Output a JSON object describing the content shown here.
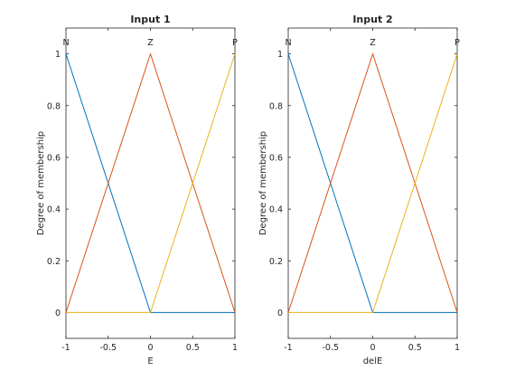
{
  "chart_data": [
    {
      "type": "line",
      "title": "Input 1",
      "xlabel": "E",
      "ylabel": "Degree of membership",
      "xlim": [
        -1,
        1
      ],
      "ylim": [
        -0.1,
        1.1
      ],
      "xticks": [
        -1,
        -0.5,
        0,
        0.5,
        1
      ],
      "xtick_labels": [
        "-1",
        "-0.5",
        "0",
        "0.5",
        "1"
      ],
      "yticks": [
        0,
        0.2,
        0.4,
        0.6,
        0.8,
        1
      ],
      "ytick_labels": [
        "0",
        "0.2",
        "0.4",
        "0.6",
        "0.8",
        "1"
      ],
      "grid": false,
      "series": [
        {
          "name": "N",
          "color": "#0072BD",
          "x": [
            -1,
            0,
            1
          ],
          "y": [
            1,
            0,
            0
          ]
        },
        {
          "name": "Z",
          "color": "#D95319",
          "x": [
            -1,
            0,
            1
          ],
          "y": [
            0,
            1,
            0
          ]
        },
        {
          "name": "P",
          "color": "#EDB120",
          "x": [
            -1,
            0,
            1
          ],
          "y": [
            0,
            0,
            1
          ]
        }
      ]
    },
    {
      "type": "line",
      "title": "Input 2",
      "xlabel": "delE",
      "ylabel": "Degree of membership",
      "xlim": [
        -1,
        1
      ],
      "ylim": [
        -0.1,
        1.1
      ],
      "xticks": [
        -1,
        -0.5,
        0,
        0.5,
        1
      ],
      "xtick_labels": [
        "-1",
        "-0.5",
        "0",
        "0.5",
        "1"
      ],
      "yticks": [
        0,
        0.2,
        0.4,
        0.6,
        0.8,
        1
      ],
      "ytick_labels": [
        "0",
        "0.2",
        "0.4",
        "0.6",
        "0.8",
        "1"
      ],
      "grid": false,
      "series": [
        {
          "name": "N",
          "color": "#0072BD",
          "x": [
            -1,
            0,
            1
          ],
          "y": [
            1,
            0,
            0
          ]
        },
        {
          "name": "Z",
          "color": "#D95319",
          "x": [
            -1,
            0,
            1
          ],
          "y": [
            0,
            1,
            0
          ]
        },
        {
          "name": "P",
          "color": "#EDB120",
          "x": [
            -1,
            0,
            1
          ],
          "y": [
            0,
            0,
            1
          ]
        }
      ]
    }
  ]
}
